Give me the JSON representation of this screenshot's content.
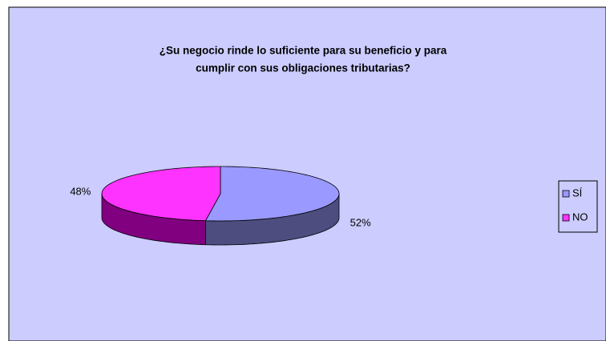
{
  "chart_data": {
    "type": "pie3d",
    "title": [
      "¿Su negocio rinde lo suficiente para su beneficio y para",
      "cumplir con sus obligaciones tributarias?"
    ],
    "categories": [
      "SÍ",
      "NO"
    ],
    "values": [
      52,
      48
    ],
    "value_labels": [
      "52%",
      "48%"
    ],
    "colors": [
      "#9999ff",
      "#ff33ff"
    ],
    "side_colors": [
      "#4d4d80",
      "#800080"
    ],
    "legend": "right"
  }
}
